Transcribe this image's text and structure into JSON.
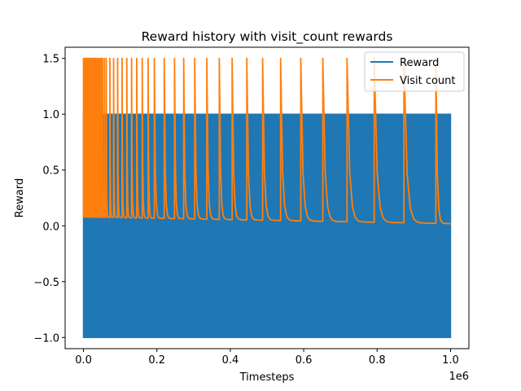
{
  "chart_data": {
    "type": "line",
    "title": "Reward history with visit_count rewards",
    "xlabel": "Timesteps",
    "ylabel": "Reward",
    "x_offset_label": "1e6",
    "xlim": [
      -50000,
      1050000
    ],
    "ylim": [
      -1.1,
      1.6
    ],
    "x_ticks": [
      0,
      200000,
      400000,
      600000,
      800000,
      1000000
    ],
    "x_tick_labels": [
      "0.0",
      "0.2",
      "0.4",
      "0.6",
      "0.8",
      "1.0"
    ],
    "y_ticks": [
      -1.0,
      -0.5,
      0.0,
      0.5,
      1.0,
      1.5
    ],
    "y_tick_labels": [
      "−1.0",
      "−0.5",
      "0.0",
      "0.5",
      "1.0",
      "1.5"
    ],
    "grid": false,
    "legend_position": "upper right",
    "series": [
      {
        "name": "Reward",
        "color": "#1f77b4",
        "description_values": {
          "min": -1.0,
          "max": 1.0,
          "x_start": 0,
          "x_end": 1000000
        }
      },
      {
        "name": "Visit count",
        "color": "#ff7f0e",
        "peak_value": 1.5,
        "spike_x": [
          0,
          2000,
          4000,
          6000,
          8000,
          10000,
          12000,
          14000,
          16000,
          18000,
          20000,
          22000,
          24000,
          26000,
          28000,
          30000,
          33000,
          36000,
          40000,
          44000,
          48000,
          52000,
          57000,
          62000,
          72000,
          82000,
          93000,
          105000,
          118000,
          131000,
          145000,
          160000,
          176000,
          193000,
          220000,
          248000,
          273000,
          303000,
          336000,
          370000,
          405000,
          445000,
          488000,
          537000,
          592000,
          652000,
          718000,
          792000,
          873000,
          960000
        ],
        "baseline_start": 0.08,
        "baseline_end": 0.02
      }
    ]
  }
}
